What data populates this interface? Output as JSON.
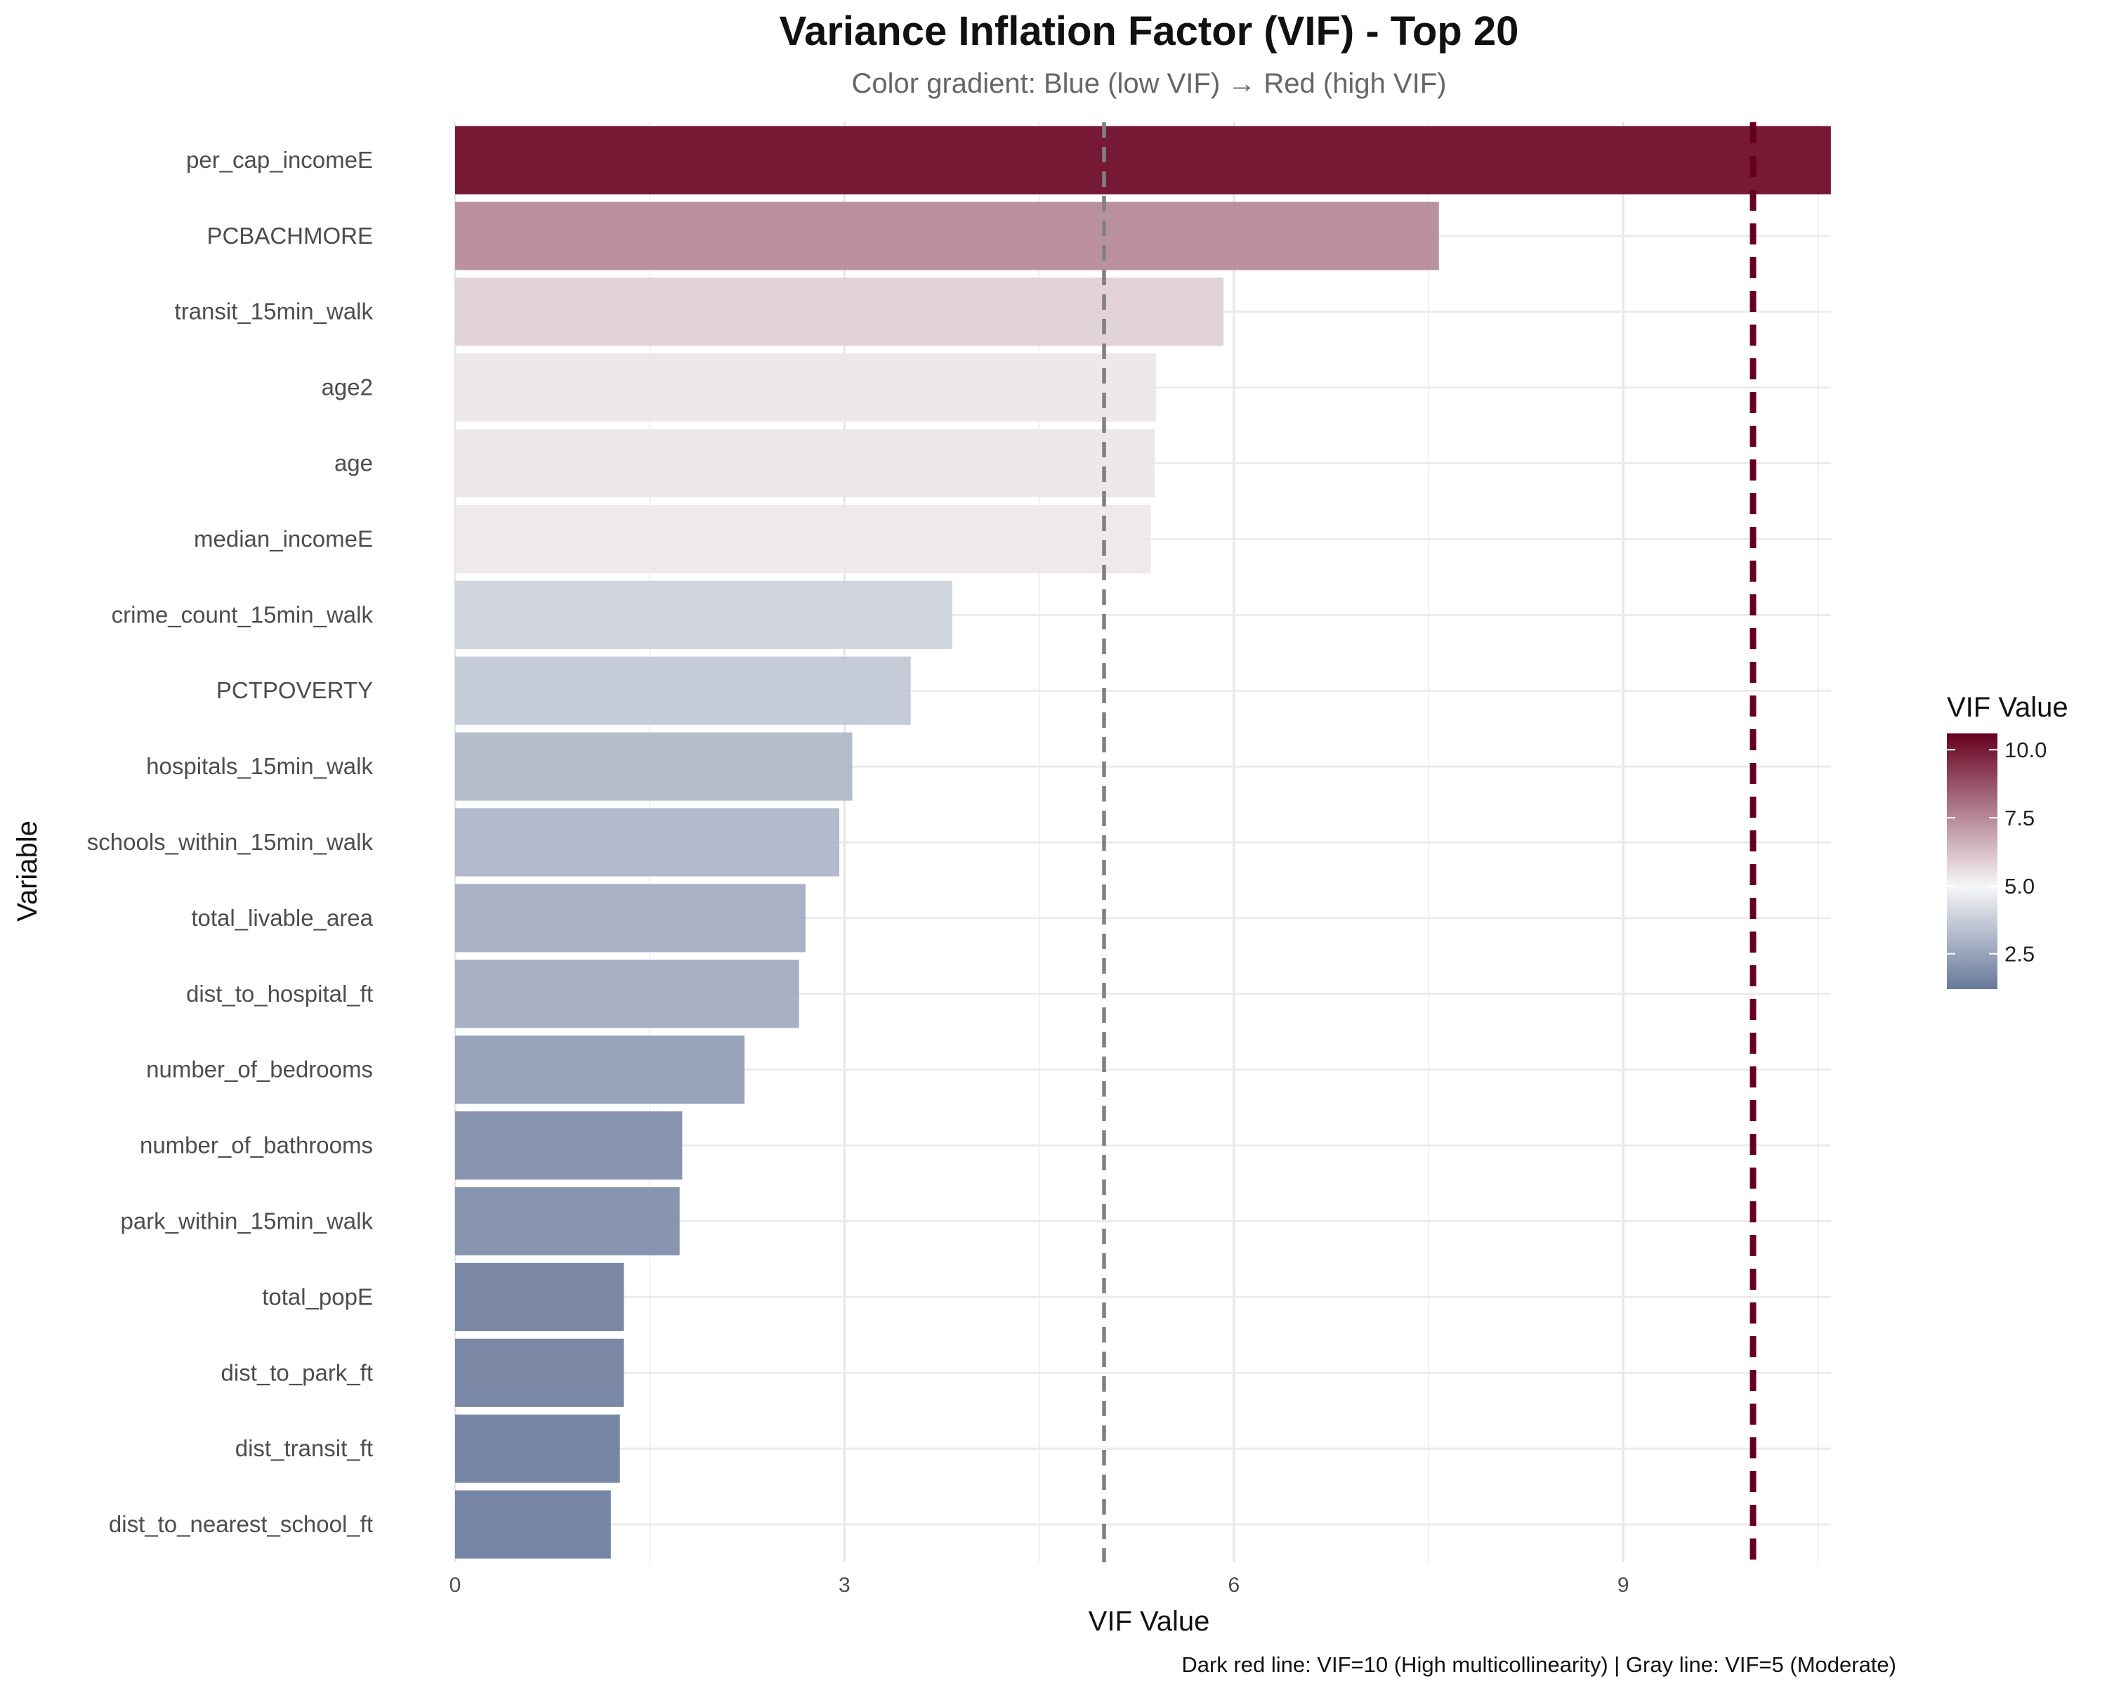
{
  "chart_data": {
    "type": "bar",
    "orientation": "horizontal",
    "title": "Variance Inflation Factor (VIF) - Top 20",
    "subtitle": "Color gradient: Blue (low VIF) → Red (high VIF)",
    "xlabel": "VIF Value",
    "ylabel": "Variable",
    "caption": "Dark red line: VIF=10 (High multicollinearity) | Gray line: VIF=5 (Moderate)",
    "xlim": [
      0,
      10.6
    ],
    "x_ticks": [
      "0",
      "3",
      "6",
      "9"
    ],
    "grid": true,
    "categories": [
      "per_cap_incomeE",
      "PCBACHMORE",
      "transit_15min_walk",
      "age2",
      "age",
      "median_incomeE",
      "crime_count_15min_walk",
      "PCTPOVERTY",
      "hospitals_15min_walk",
      "schools_within_15min_walk",
      "total_livable_area",
      "dist_to_hospital_ft",
      "number_of_bedrooms",
      "number_of_bathrooms",
      "park_within_15min_walk",
      "total_popE",
      "dist_to_park_ft",
      "dist_transit_ft",
      "dist_to_nearest_school_ft"
    ],
    "values": [
      10.6,
      7.58,
      5.92,
      5.4,
      5.39,
      5.36,
      3.83,
      3.51,
      3.06,
      2.96,
      2.7,
      2.65,
      2.23,
      1.75,
      1.73,
      1.3,
      1.3,
      1.27,
      1.2
    ],
    "reference_lines": [
      {
        "value": 10,
        "style": "dashed",
        "color": "#67001f"
      },
      {
        "value": 5,
        "style": "dashed",
        "color": "#808080"
      }
    ],
    "colors": {
      "low": "#67789a",
      "mid": "#f7f7f7",
      "high": "#67001f"
    },
    "legend": {
      "title": "VIF Value",
      "placement": "right",
      "range": [
        1.2,
        10.6
      ],
      "ticks": [
        "2.5",
        "5.0",
        "7.5",
        "10.0"
      ]
    }
  }
}
